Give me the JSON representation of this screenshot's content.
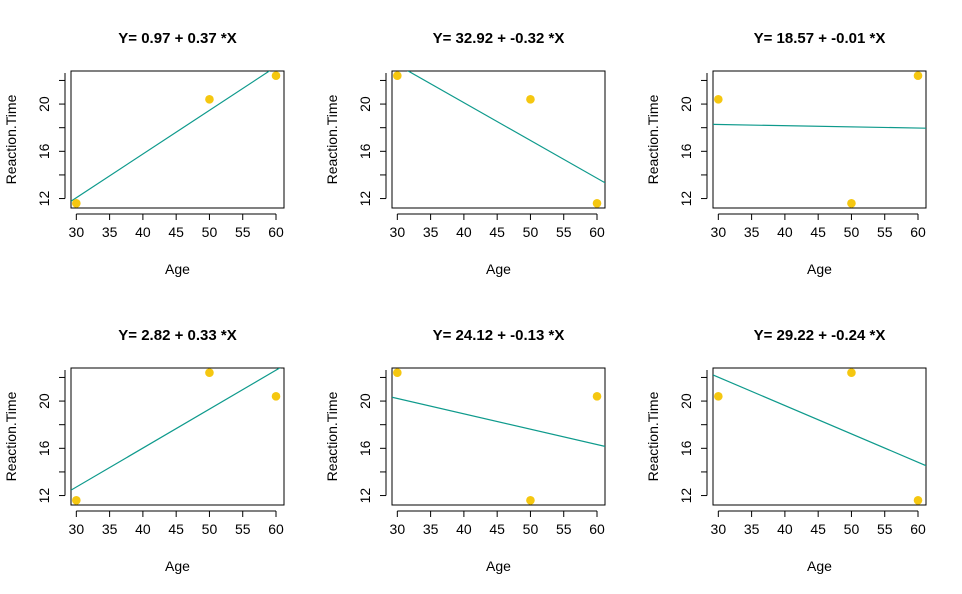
{
  "chart_data": [
    {
      "type": "scatter",
      "title": "Y= 0.97 + 0.37 *X",
      "xlabel": "Age",
      "ylabel": "Reaction.Time",
      "xticks": [
        30,
        35,
        40,
        45,
        50,
        55,
        60
      ],
      "yticks": [
        12,
        16,
        20
      ],
      "xlim": [
        29.2,
        61.2
      ],
      "ylim": [
        11.2,
        22.8
      ],
      "points": [
        {
          "x": 30,
          "y": 11.6
        },
        {
          "x": 50,
          "y": 20.4
        },
        {
          "x": 60,
          "y": 22.4
        }
      ],
      "fit": {
        "intercept": 0.97,
        "slope": 0.37
      },
      "grid": false
    },
    {
      "type": "scatter",
      "title": "Y= 32.92 + -0.32 *X",
      "xlabel": "Age",
      "ylabel": "Reaction.Time",
      "xticks": [
        30,
        35,
        40,
        45,
        50,
        55,
        60
      ],
      "yticks": [
        12,
        16,
        20
      ],
      "xlim": [
        29.2,
        61.2
      ],
      "ylim": [
        11.2,
        22.8
      ],
      "points": [
        {
          "x": 30,
          "y": 22.4
        },
        {
          "x": 50,
          "y": 20.4
        },
        {
          "x": 60,
          "y": 11.6
        }
      ],
      "fit": {
        "intercept": 32.92,
        "slope": -0.32
      },
      "grid": false
    },
    {
      "type": "scatter",
      "title": "Y= 18.57 + -0.01 *X",
      "xlabel": "Age",
      "ylabel": "Reaction.Time",
      "xticks": [
        30,
        35,
        40,
        45,
        50,
        55,
        60
      ],
      "yticks": [
        12,
        16,
        20
      ],
      "xlim": [
        29.2,
        61.2
      ],
      "ylim": [
        11.2,
        22.8
      ],
      "points": [
        {
          "x": 30,
          "y": 20.4
        },
        {
          "x": 50,
          "y": 11.6
        },
        {
          "x": 60,
          "y": 22.4
        }
      ],
      "fit": {
        "intercept": 18.57,
        "slope": -0.01
      },
      "grid": false
    },
    {
      "type": "scatter",
      "title": "Y= 2.82 + 0.33 *X",
      "xlabel": "Age",
      "ylabel": "Reaction.Time",
      "xticks": [
        30,
        35,
        40,
        45,
        50,
        55,
        60
      ],
      "yticks": [
        12,
        16,
        20
      ],
      "xlim": [
        29.2,
        61.2
      ],
      "ylim": [
        11.2,
        22.8
      ],
      "points": [
        {
          "x": 30,
          "y": 11.6
        },
        {
          "x": 50,
          "y": 22.4
        },
        {
          "x": 60,
          "y": 20.4
        }
      ],
      "fit": {
        "intercept": 2.82,
        "slope": 0.33
      },
      "grid": false
    },
    {
      "type": "scatter",
      "title": "Y= 24.12 + -0.13 *X",
      "xlabel": "Age",
      "ylabel": "Reaction.Time",
      "xticks": [
        30,
        35,
        40,
        45,
        50,
        55,
        60
      ],
      "yticks": [
        12,
        16,
        20
      ],
      "xlim": [
        29.2,
        61.2
      ],
      "ylim": [
        11.2,
        22.8
      ],
      "points": [
        {
          "x": 30,
          "y": 22.4
        },
        {
          "x": 50,
          "y": 11.6
        },
        {
          "x": 60,
          "y": 20.4
        }
      ],
      "fit": {
        "intercept": 24.12,
        "slope": -0.13
      },
      "grid": false
    },
    {
      "type": "scatter",
      "title": "Y= 29.22 + -0.24 *X",
      "xlabel": "Age",
      "ylabel": "Reaction.Time",
      "xticks": [
        30,
        35,
        40,
        45,
        50,
        55,
        60
      ],
      "yticks": [
        12,
        16,
        20
      ],
      "xlim": [
        29.2,
        61.2
      ],
      "ylim": [
        11.2,
        22.8
      ],
      "points": [
        {
          "x": 30,
          "y": 20.4
        },
        {
          "x": 50,
          "y": 22.4
        },
        {
          "x": 60,
          "y": 11.6
        }
      ],
      "fit": {
        "intercept": 29.22,
        "slope": -0.24
      },
      "grid": false
    }
  ],
  "colors": {
    "point": "#F5C710",
    "fit_line": "#0E9A8C",
    "axis": "#000000"
  }
}
